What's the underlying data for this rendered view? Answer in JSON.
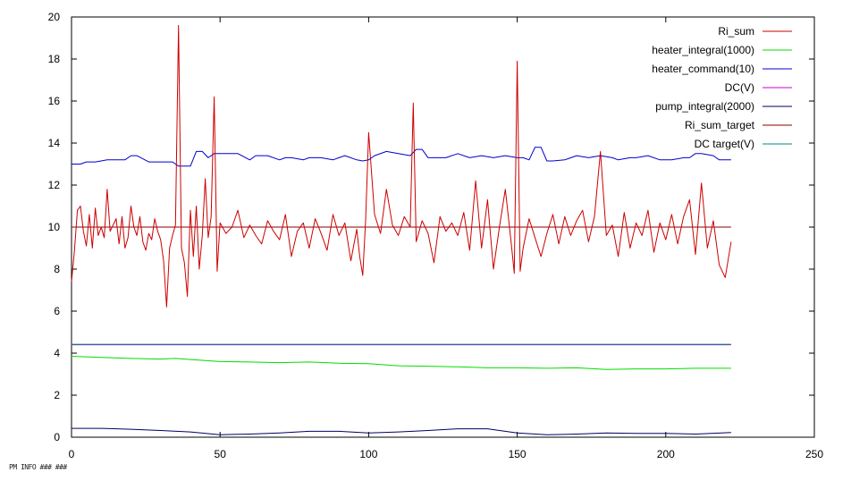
{
  "footer": {
    "text": "PM INFO  ### ###"
  },
  "chart_data": {
    "type": "line",
    "title": "",
    "xlabel": "",
    "ylabel": "",
    "xlim": [
      0,
      250
    ],
    "ylim": [
      0,
      20
    ],
    "xticks": [
      0,
      50,
      100,
      150,
      200,
      250
    ],
    "yticks": [
      0,
      2,
      4,
      6,
      8,
      10,
      12,
      14,
      16,
      18,
      20
    ],
    "grid": false,
    "legend_position": "top-right",
    "series": [
      {
        "name": "Ri_sum",
        "color": "#cc0000",
        "x": [
          0,
          1,
          2,
          3,
          4,
          5,
          6,
          7,
          8,
          9,
          10,
          11,
          12,
          13,
          14,
          15,
          16,
          17,
          18,
          19,
          20,
          21,
          22,
          23,
          24,
          25,
          26,
          27,
          28,
          29,
          30,
          31,
          32,
          33,
          34,
          35,
          36,
          37,
          38,
          39,
          40,
          41,
          42,
          43,
          44,
          45,
          46,
          47,
          48,
          49,
          50,
          52,
          54,
          56,
          58,
          60,
          62,
          64,
          66,
          68,
          70,
          72,
          74,
          76,
          78,
          80,
          82,
          84,
          86,
          88,
          90,
          92,
          94,
          96,
          97,
          98,
          99,
          100,
          102,
          104,
          106,
          108,
          110,
          112,
          114,
          115,
          116,
          118,
          120,
          122,
          124,
          126,
          128,
          130,
          132,
          134,
          136,
          138,
          140,
          142,
          144,
          146,
          148,
          149,
          150,
          151,
          152,
          154,
          156,
          158,
          160,
          162,
          164,
          166,
          168,
          170,
          172,
          174,
          176,
          178,
          180,
          182,
          184,
          186,
          188,
          190,
          192,
          194,
          196,
          198,
          200,
          202,
          204,
          206,
          208,
          210,
          212,
          214,
          216,
          218,
          220,
          222
        ],
        "values": [
          7.4,
          8.9,
          10.8,
          11.0,
          9.8,
          9.1,
          10.6,
          9.0,
          10.9,
          9.6,
          10.0,
          9.5,
          11.8,
          9.8,
          10.1,
          10.4,
          9.2,
          10.5,
          9.0,
          9.5,
          11.0,
          10.0,
          9.6,
          10.5,
          9.3,
          8.9,
          9.7,
          9.4,
          10.4,
          9.8,
          9.4,
          8.4,
          6.2,
          9.0,
          9.6,
          10.1,
          19.6,
          9.0,
          8.3,
          6.7,
          10.8,
          8.6,
          11.0,
          8.0,
          9.6,
          12.3,
          9.5,
          10.5,
          16.2,
          7.9,
          10.2,
          9.7,
          10.0,
          10.8,
          9.5,
          10.1,
          9.6,
          9.2,
          10.3,
          9.8,
          9.4,
          10.6,
          8.6,
          9.8,
          10.2,
          9.0,
          10.4,
          9.7,
          8.9,
          10.6,
          9.6,
          10.2,
          8.4,
          9.9,
          8.6,
          7.7,
          10.4,
          14.5,
          10.6,
          9.7,
          11.8,
          10.1,
          9.6,
          10.5,
          10.0,
          15.9,
          9.3,
          10.3,
          9.7,
          8.3,
          10.5,
          9.8,
          10.2,
          9.6,
          10.7,
          8.9,
          12.2,
          9.0,
          11.3,
          8.0,
          10.0,
          11.8,
          9.2,
          7.8,
          17.9,
          7.9,
          9.0,
          10.4,
          9.5,
          8.6,
          9.7,
          10.6,
          9.2,
          10.5,
          9.6,
          10.3,
          10.8,
          9.3,
          10.5,
          13.6,
          9.6,
          10.1,
          8.6,
          10.7,
          9.0,
          10.2,
          9.6,
          10.8,
          8.8,
          10.2,
          9.4,
          10.6,
          9.2,
          10.5,
          11.3,
          8.7,
          12.1,
          9.0,
          10.3,
          8.2,
          7.6,
          9.3
        ]
      },
      {
        "name": "heater_integral(1000)",
        "color": "#00dd00",
        "x": [
          0,
          10,
          20,
          30,
          35,
          40,
          45,
          50,
          60,
          70,
          80,
          90,
          100,
          110,
          120,
          130,
          140,
          150,
          160,
          170,
          180,
          190,
          200,
          210,
          222
        ],
        "values": [
          3.85,
          3.8,
          3.75,
          3.72,
          3.75,
          3.7,
          3.65,
          3.6,
          3.58,
          3.55,
          3.58,
          3.52,
          3.5,
          3.4,
          3.38,
          3.35,
          3.3,
          3.3,
          3.28,
          3.3,
          3.22,
          3.25,
          3.25,
          3.28,
          3.28
        ]
      },
      {
        "name": "heater_command(10)",
        "color": "#0000cc",
        "x": [
          0,
          3,
          5,
          8,
          10,
          12,
          14,
          18,
          20,
          22,
          26,
          30,
          34,
          36,
          40,
          42,
          44,
          46,
          48,
          50,
          52,
          54,
          56,
          60,
          62,
          66,
          70,
          72,
          74,
          78,
          80,
          84,
          88,
          90,
          92,
          96,
          98,
          100,
          102,
          106,
          110,
          114,
          116,
          118,
          120,
          122,
          126,
          130,
          134,
          138,
          142,
          146,
          150,
          152,
          154,
          156,
          158,
          160,
          162,
          166,
          170,
          174,
          178,
          182,
          184,
          188,
          190,
          194,
          198,
          202,
          206,
          208,
          210,
          212,
          216,
          218,
          222
        ],
        "values": [
          13.0,
          13.0,
          13.1,
          13.1,
          13.15,
          13.2,
          13.2,
          13.2,
          13.4,
          13.4,
          13.1,
          13.1,
          13.1,
          12.9,
          12.9,
          13.6,
          13.6,
          13.3,
          13.5,
          13.5,
          13.5,
          13.5,
          13.5,
          13.2,
          13.4,
          13.4,
          13.2,
          13.3,
          13.3,
          13.2,
          13.3,
          13.3,
          13.2,
          13.3,
          13.4,
          13.2,
          13.15,
          13.2,
          13.4,
          13.6,
          13.5,
          13.4,
          13.7,
          13.7,
          13.3,
          13.3,
          13.3,
          13.5,
          13.3,
          13.4,
          13.3,
          13.4,
          13.3,
          13.3,
          13.2,
          13.8,
          13.8,
          13.15,
          13.15,
          13.2,
          13.4,
          13.3,
          13.4,
          13.3,
          13.2,
          13.3,
          13.3,
          13.4,
          13.2,
          13.2,
          13.3,
          13.3,
          13.5,
          13.5,
          13.4,
          13.2,
          13.2
        ]
      },
      {
        "name": "DC(V)",
        "color": "#cc00cc",
        "x": [
          0,
          222
        ],
        "values": [
          4.4,
          4.4
        ]
      },
      {
        "name": "pump_integral(2000)",
        "color": "#000066",
        "x": [
          0,
          10,
          20,
          30,
          40,
          50,
          60,
          70,
          80,
          90,
          100,
          110,
          120,
          130,
          140,
          150,
          160,
          170,
          180,
          190,
          200,
          210,
          222
        ],
        "values": [
          0.42,
          0.42,
          0.38,
          0.32,
          0.25,
          0.12,
          0.15,
          0.2,
          0.28,
          0.28,
          0.2,
          0.25,
          0.32,
          0.4,
          0.4,
          0.2,
          0.12,
          0.15,
          0.2,
          0.18,
          0.18,
          0.15,
          0.22
        ]
      },
      {
        "name": "Ri_sum_target",
        "color": "#880000",
        "x": [
          0,
          222
        ],
        "values": [
          10.0,
          10.0
        ]
      },
      {
        "name": "DC target(V)",
        "color": "#008888",
        "x": [
          0,
          222
        ],
        "values": [
          4.42,
          4.42
        ]
      }
    ]
  }
}
